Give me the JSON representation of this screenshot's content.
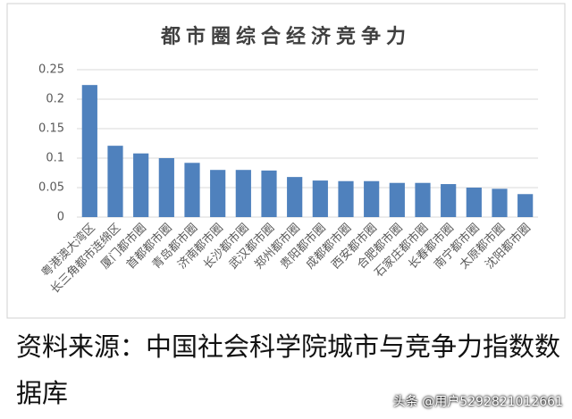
{
  "chart_data": {
    "type": "bar",
    "title": "都市圈综合经济竞争力",
    "categories": [
      "粤港澳大湾区",
      "长三角都市连绵区",
      "厦门都市圈",
      "首都都市圈",
      "青岛都市圈",
      "济南都市圈",
      "长沙都市圈",
      "武汉都市圈",
      "郑州都市圈",
      "贵阳都市圈",
      "成都都市圈",
      "西安都市圈",
      "合肥都市圈",
      "石家庄都市圈",
      "长春都市圈",
      "南宁都市圈",
      "太原都市圈",
      "沈阳都市圈"
    ],
    "values": [
      0.224,
      0.121,
      0.108,
      0.1,
      0.092,
      0.08,
      0.08,
      0.079,
      0.068,
      0.062,
      0.061,
      0.061,
      0.058,
      0.058,
      0.056,
      0.05,
      0.048,
      0.039
    ],
    "color": "#4f81bd",
    "ylim": [
      0,
      0.25
    ],
    "yticks": [
      0,
      0.05,
      0.1,
      0.15,
      0.2,
      0.25
    ],
    "grid": true
  },
  "source": "资料来源：中国社会科学院城市与竞争力指数数据库",
  "watermark": "头条 @用户5292821012661"
}
